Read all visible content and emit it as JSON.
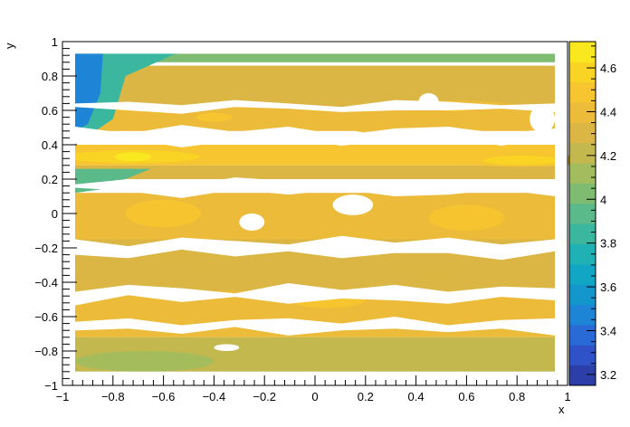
{
  "chart_data": {
    "type": "heatmap",
    "xlabel": "x",
    "ylabel": "y",
    "xlim": [
      -1,
      1
    ],
    "ylim": [
      -1,
      1
    ],
    "zlim": [
      3.15,
      4.72
    ],
    "x_ticks": [
      -1,
      -0.8,
      -0.6,
      -0.4,
      -0.2,
      0,
      0.2,
      0.4,
      0.6,
      0.8,
      1
    ],
    "x_tick_labels": [
      "−1",
      "−0.8",
      "−0.6",
      "−0.4",
      "−0.2",
      "0",
      "0.2",
      "0.4",
      "0.6",
      "0.8",
      "1"
    ],
    "y_ticks": [
      -1,
      -0.8,
      -0.6,
      -0.4,
      -0.2,
      0,
      0.2,
      0.4,
      0.6,
      0.8,
      1
    ],
    "y_tick_labels": [
      "−1",
      "−0.8",
      "−0.6",
      "−0.4",
      "−0.2",
      "0",
      "0.2",
      "0.4",
      "0.6",
      "0.8",
      "1"
    ],
    "z_ticks": [
      3.2,
      3.4,
      3.6,
      3.8,
      4,
      4.2,
      4.4,
      4.6
    ],
    "z_tick_labels": [
      "3.2",
      "3.4",
      "3.6",
      "3.8",
      "4",
      "4.2",
      "4.4",
      "4.6"
    ],
    "palette": [
      "#2c3ea8",
      "#2f52c8",
      "#2a6ad6",
      "#1d84d6",
      "#1296cc",
      "#11a6c4",
      "#1fb1b4",
      "#3bb7a0",
      "#5bba8a",
      "#7ebc72",
      "#a2bc5e",
      "#c3b84e",
      "#dbb644",
      "#ecbb3a",
      "#f6c52f",
      "#fad424",
      "#f9e81f"
    ],
    "bands": [
      {
        "y": [
          0.88,
          0.93
        ],
        "z": 4.05
      },
      {
        "y": [
          0.62,
          0.86
        ],
        "z": 4.3
      },
      {
        "y": [
          0.48,
          0.62
        ],
        "z": 4.38
      },
      {
        "y": [
          0.28,
          0.4
        ],
        "z": 4.45
      },
      {
        "y": [
          0.2,
          0.28
        ],
        "z": 4.35
      },
      {
        "y": [
          -0.15,
          0.12
        ],
        "z": 4.42
      },
      {
        "y": [
          -0.45,
          -0.15
        ],
        "z": 4.33
      },
      {
        "y": [
          -0.6,
          -0.45
        ],
        "z": 4.4
      },
      {
        "y": [
          -0.72,
          -0.6
        ],
        "z": 4.36
      },
      {
        "y": [
          -0.92,
          -0.72
        ],
        "z": 4.22
      }
    ],
    "hotspots": [
      {
        "x": -0.72,
        "y": 0.33,
        "z": 4.66
      },
      {
        "x": 0.82,
        "y": 0.31,
        "z": 4.6
      },
      {
        "x": -0.4,
        "y": 0.56,
        "z": 4.5
      },
      {
        "x": 0.55,
        "y": 0.62,
        "z": 4.48
      }
    ],
    "coldspots": [
      {
        "x": -0.93,
        "y": 0.78,
        "z": 3.3
      },
      {
        "x": -0.9,
        "y": 0.55,
        "z": 3.6
      },
      {
        "x": -0.9,
        "y": 0.2,
        "z": 3.95
      }
    ],
    "grid": false
  }
}
